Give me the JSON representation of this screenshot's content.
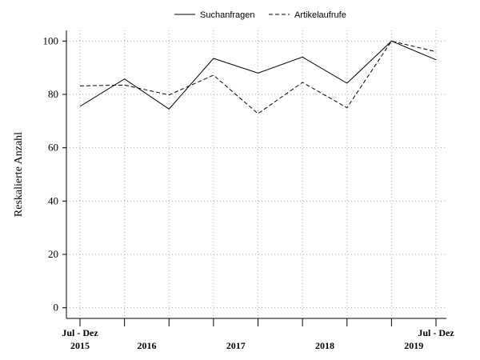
{
  "chart_data": {
    "type": "line",
    "title": "",
    "xlabel": "",
    "ylabel": "Reskalierte Anzahl",
    "ylim": [
      -4,
      104
    ],
    "yticks": [
      0,
      20,
      40,
      60,
      80,
      100
    ],
    "grid": true,
    "legend": "top-center",
    "x": [
      "2015-H2",
      "2016-H1",
      "2016-H2",
      "2017-H1",
      "2017-H2",
      "2018-H1",
      "2018-H2",
      "2019-H1",
      "2019-H2"
    ],
    "year_labels": [
      "2015",
      "2016",
      "2017",
      "2018",
      "2019"
    ],
    "period_labels": [
      "Jul - Dez",
      "Jul - Dez"
    ],
    "series": [
      {
        "name": "Suchanfragen",
        "style": "solid",
        "values": [
          75.5,
          85.8,
          74.5,
          93.5,
          88,
          94,
          84.2,
          100,
          93
        ]
      },
      {
        "name": "Artikelaufrufe",
        "style": "dashed",
        "values": [
          83.2,
          83.5,
          79.8,
          87.2,
          72.8,
          84.5,
          75,
          100,
          96
        ]
      }
    ]
  }
}
